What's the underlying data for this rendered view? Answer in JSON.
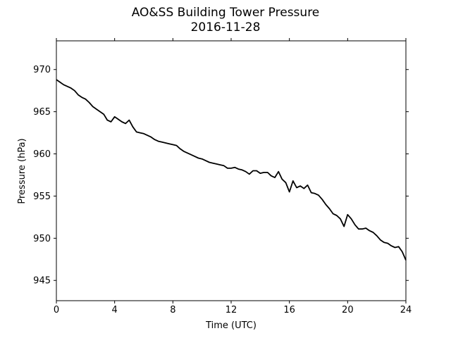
{
  "chart_data": {
    "type": "line",
    "title": "AO&SS Building Tower Pressure",
    "subtitle": "2016-11-28",
    "xlabel": "Time (UTC)",
    "ylabel": "Pressure (hPa)",
    "xlim": [
      0,
      24
    ],
    "ylim": [
      942.6,
      973.4
    ],
    "xticks": [
      0,
      4,
      8,
      12,
      16,
      20,
      24
    ],
    "yticks": [
      945,
      950,
      955,
      960,
      965,
      970
    ],
    "grid": false,
    "line_color": "#000000",
    "series": [
      {
        "x": [
          0,
          0.25,
          0.5,
          0.75,
          1.0,
          1.25,
          1.5,
          1.75,
          2.0,
          2.25,
          2.5,
          2.75,
          3.0,
          3.25,
          3.5,
          3.75,
          4.0,
          4.25,
          4.5,
          4.75,
          5.0,
          5.25,
          5.5,
          5.75,
          6.0,
          6.25,
          6.5,
          6.75,
          7.0,
          7.25,
          7.5,
          7.75,
          8.0,
          8.25,
          8.5,
          8.75,
          9.0,
          9.25,
          9.5,
          9.75,
          10.0,
          10.25,
          10.5,
          10.75,
          11.0,
          11.25,
          11.5,
          11.75,
          12.0,
          12.25,
          12.5,
          12.75,
          13.0,
          13.25,
          13.5,
          13.75,
          14.0,
          14.25,
          14.5,
          14.75,
          15.0,
          15.25,
          15.5,
          15.75,
          16.0,
          16.25,
          16.5,
          16.75,
          17.0,
          17.25,
          17.5,
          17.75,
          18.0,
          18.25,
          18.5,
          18.75,
          19.0,
          19.25,
          19.5,
          19.75,
          20.0,
          20.25,
          20.5,
          20.75,
          21.0,
          21.25,
          21.5,
          21.75,
          22.0,
          22.25,
          22.5,
          22.75,
          23.0,
          23.25,
          23.5,
          23.75,
          24.0
        ],
        "values": [
          968.8,
          968.5,
          968.2,
          968.0,
          967.8,
          967.5,
          967.0,
          966.7,
          966.5,
          966.1,
          965.6,
          965.3,
          965.0,
          964.7,
          964.0,
          963.8,
          964.4,
          964.1,
          963.8,
          963.6,
          964.0,
          963.2,
          962.6,
          962.5,
          962.4,
          962.2,
          962.0,
          961.7,
          961.5,
          961.4,
          961.3,
          961.2,
          961.1,
          961.0,
          960.6,
          960.3,
          960.1,
          959.9,
          959.7,
          959.5,
          959.4,
          959.2,
          959.0,
          958.9,
          958.8,
          958.7,
          958.6,
          958.3,
          958.3,
          958.4,
          958.2,
          958.1,
          957.9,
          957.6,
          958.0,
          958.0,
          957.7,
          957.8,
          957.8,
          957.4,
          957.2,
          957.9,
          957.0,
          956.6,
          955.5,
          956.8,
          956.0,
          956.2,
          955.9,
          956.3,
          955.4,
          955.3,
          955.1,
          954.6,
          954.0,
          953.5,
          952.9,
          952.7,
          952.3,
          951.4,
          952.8,
          952.3,
          951.6,
          951.1,
          951.1,
          951.2,
          950.9,
          950.7,
          950.3,
          949.8,
          949.5,
          949.4,
          949.1,
          948.9,
          949.0,
          948.4,
          947.4
        ]
      }
    ]
  }
}
